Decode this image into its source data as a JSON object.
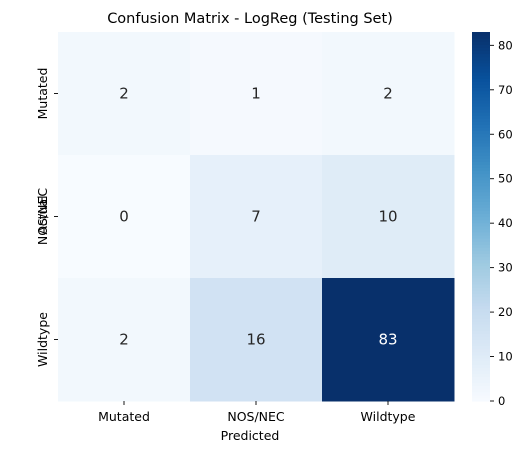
{
  "chart_data": {
    "type": "heatmap",
    "title": "Confusion Matrix - LogReg (Testing Set)",
    "xlabel": "Predicted",
    "ylabel": "Actual",
    "x_categories": [
      "Mutated",
      "NOS/NEC",
      "Wildtype"
    ],
    "y_categories": [
      "Mutated",
      "NOS/NEC",
      "Wildtype"
    ],
    "values": [
      [
        2,
        1,
        2
      ],
      [
        0,
        7,
        10
      ],
      [
        2,
        16,
        83
      ]
    ],
    "colormap": "Blues",
    "color_range": [
      0,
      83
    ],
    "colorbar_ticks": [
      0,
      10,
      20,
      30,
      40,
      50,
      60,
      70,
      80
    ]
  }
}
